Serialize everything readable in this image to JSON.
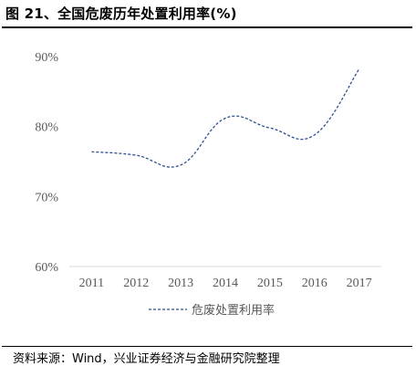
{
  "figure": {
    "title": "图 21、全国危废历年处置利用率(%)",
    "source": "资料来源：Wind，兴业证券经济与金融研究院整理"
  },
  "chart_data": {
    "type": "line",
    "title": "",
    "xlabel": "",
    "ylabel": "",
    "categories": [
      "2011",
      "2012",
      "2013",
      "2014",
      "2015",
      "2016",
      "2017"
    ],
    "series": [
      {
        "name": "危废处置利用率",
        "values": [
          76.4,
          75.9,
          74.5,
          81.2,
          79.8,
          78.8,
          88.2
        ],
        "color": "#2e4f8f",
        "style": "dashed"
      }
    ],
    "ylim": [
      60,
      90
    ],
    "yticks": [
      60,
      70,
      80,
      90
    ],
    "ytick_labels": [
      "60%",
      "70%",
      "80%",
      "90%"
    ],
    "grid": false,
    "legend": "bottom-center"
  }
}
